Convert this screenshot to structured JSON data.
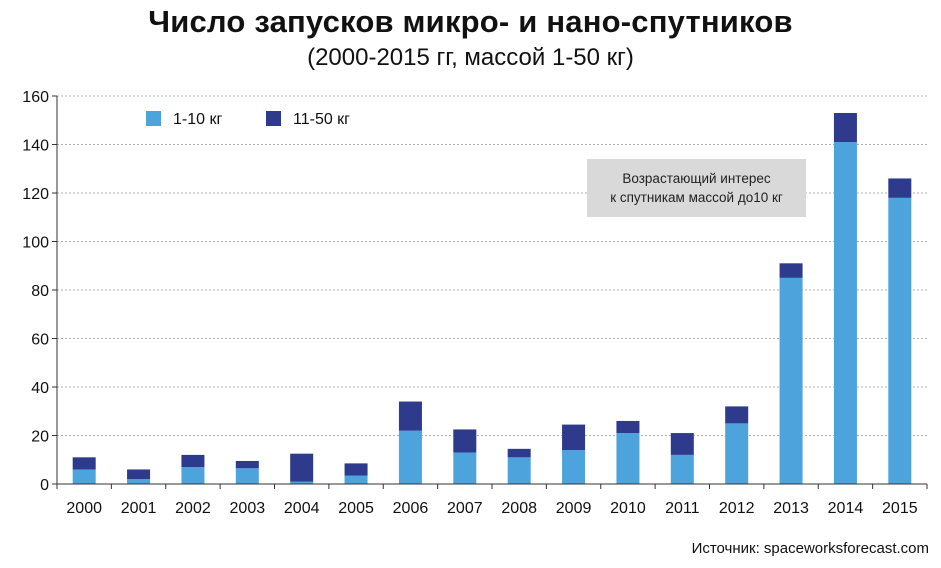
{
  "title": "Число запусков микро- и нано-спутников",
  "subtitle": "(2000-2015 гг, массой 1-50 кг)",
  "annotation": {
    "line1": "Возрастающий интерес",
    "line2": "к спутникам массой до10 кг"
  },
  "source": "Источник: spaceworksforecast.com",
  "colors": {
    "small": "#4da3dc",
    "large": "#2e3a8c",
    "grid": "#b0b0b0",
    "axis": "#333333"
  },
  "chart_data": {
    "type": "bar",
    "stacked": true,
    "categories": [
      "2000",
      "2001",
      "2002",
      "2003",
      "2004",
      "2005",
      "2006",
      "2007",
      "2008",
      "2009",
      "2010",
      "2011",
      "2012",
      "2013",
      "2014",
      "2015"
    ],
    "series": [
      {
        "name": "1-10 кг",
        "values": [
          6,
          2,
          7,
          6.5,
          1,
          3.5,
          22,
          13,
          11,
          14,
          21,
          12,
          25,
          85,
          141,
          118
        ]
      },
      {
        "name": "11-50 кг",
        "values": [
          5,
          4,
          5,
          3,
          11.5,
          5,
          12,
          9.5,
          3.5,
          10.5,
          5,
          9,
          7,
          6,
          12,
          8
        ]
      }
    ],
    "ylim": [
      0,
      160
    ],
    "yticks": [
      0,
      20,
      40,
      60,
      80,
      100,
      120,
      140,
      160
    ],
    "grid": true,
    "legend_position": "top-left",
    "xlabel": "",
    "ylabel": ""
  }
}
